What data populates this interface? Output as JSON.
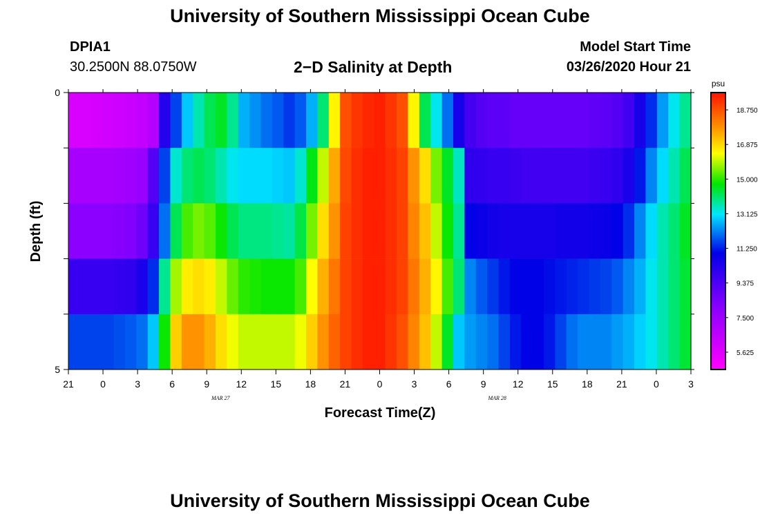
{
  "header": {
    "title": "University of Southern Mississippi Ocean Cube",
    "station_id": "DPIA1",
    "station_coords": "30.2500N 88.0750W",
    "plot_title": "2−D Salinity at Depth",
    "model_label": "Model Start Time",
    "model_time": "03/26/2020 Hour 21"
  },
  "footer": {
    "title": "University of Southern Mississippi Ocean Cube"
  },
  "chart_data": {
    "type": "heatmap",
    "title": "2−D Salinity at Depth",
    "xlabel": "Forecast Time(Z)",
    "ylabel": "Depth (ft)",
    "x_tick_labels": [
      "21",
      "0",
      "3",
      "6",
      "9",
      "12",
      "15",
      "18",
      "21",
      "0",
      "3",
      "6",
      "9",
      "12",
      "15",
      "18",
      "21",
      "0",
      "3"
    ],
    "date_labels": [
      {
        "text": "MAR 27",
        "after_tick": 4
      },
      {
        "text": "MAR 28",
        "after_tick": 12
      }
    ],
    "y_tick_labels": [
      "0",
      "5"
    ],
    "ylim": [
      0,
      5
    ],
    "x_hours": [
      0,
      1,
      2,
      3,
      4,
      5,
      6,
      7,
      8,
      9,
      10,
      11,
      12,
      13,
      14,
      15,
      16,
      17,
      18,
      19,
      20,
      21,
      22,
      23,
      24,
      25,
      26,
      27,
      28,
      29,
      30,
      31,
      32,
      33,
      34,
      35,
      36,
      37,
      38,
      39,
      40,
      41,
      42,
      43,
      44,
      45,
      46,
      47,
      48,
      49,
      50,
      51,
      52,
      53,
      54
    ],
    "depth_bands": [
      "0-1",
      "1-2",
      "2-3",
      "3-4",
      "4-5"
    ],
    "colorbar": {
      "unit": "psu",
      "min": 4.6875,
      "max": 19.6875,
      "tick_labels": [
        "18.750",
        "16.875",
        "15.000",
        "13.125",
        "11.250",
        "9.375",
        "7.500",
        "5.625"
      ],
      "tick_values": [
        18.75,
        16.875,
        15.0,
        13.125,
        11.25,
        9.375,
        7.5,
        5.625
      ]
    },
    "values": [
      [
        5.8,
        5.8,
        5.9,
        6.0,
        6.1,
        6.2,
        6.4,
        6.8,
        10.2,
        11.6,
        12.8,
        13.6,
        14.2,
        14.5,
        13.8,
        12.6,
        12.3,
        12.0,
        11.8,
        11.5,
        11.8,
        12.6,
        14.0,
        16.5,
        18.8,
        19.2,
        19.4,
        19.5,
        19.2,
        18.8,
        16.5,
        14.2,
        13.2,
        12.0,
        10.5,
        9.5,
        9.2,
        9.0,
        9.0,
        8.8,
        8.8,
        8.8,
        8.8,
        8.8,
        8.8,
        8.8,
        8.9,
        9.0,
        9.2,
        9.6,
        10.5,
        11.4,
        12.4,
        13.2,
        13.8
      ],
      [
        7.2,
        7.2,
        7.2,
        7.2,
        7.3,
        7.4,
        7.6,
        9.2,
        11.6,
        13.4,
        14.0,
        14.2,
        14.0,
        13.6,
        13.2,
        13.0,
        13.0,
        13.0,
        12.9,
        12.8,
        13.4,
        14.6,
        16.0,
        17.5,
        18.9,
        19.3,
        19.5,
        19.5,
        19.3,
        19.0,
        17.8,
        16.8,
        15.5,
        14.5,
        13.5,
        10.0,
        9.9,
        9.8,
        9.8,
        9.7,
        9.6,
        9.6,
        9.6,
        9.6,
        9.6,
        9.6,
        9.7,
        9.8,
        10.0,
        10.4,
        11.2,
        12.2,
        13.0,
        13.6,
        14.2
      ],
      [
        8.0,
        8.0,
        8.0,
        8.0,
        8.1,
        8.2,
        8.6,
        9.8,
        12.0,
        14.2,
        15.2,
        15.5,
        15.3,
        14.8,
        14.2,
        13.9,
        13.9,
        13.9,
        13.8,
        13.7,
        14.3,
        15.5,
        16.8,
        17.8,
        19.0,
        19.3,
        19.5,
        19.5,
        19.3,
        19.0,
        18.0,
        17.2,
        16.0,
        14.8,
        13.8,
        11.0,
        10.8,
        10.6,
        10.5,
        10.5,
        10.5,
        10.5,
        10.5,
        10.6,
        10.6,
        10.6,
        10.7,
        10.8,
        11.0,
        11.4,
        12.2,
        13.0,
        13.6,
        14.0,
        14.5
      ],
      [
        9.8,
        9.8,
        9.8,
        9.8,
        9.9,
        10.0,
        10.4,
        11.4,
        13.8,
        15.8,
        16.6,
        16.8,
        16.6,
        16.0,
        15.4,
        15.0,
        14.9,
        14.8,
        14.8,
        14.8,
        15.2,
        16.4,
        17.4,
        18.2,
        19.0,
        19.3,
        19.5,
        19.5,
        19.3,
        19.0,
        18.2,
        17.4,
        16.5,
        15.2,
        14.0,
        12.2,
        11.8,
        11.5,
        11.2,
        11.0,
        11.0,
        11.0,
        11.1,
        11.2,
        11.3,
        11.4,
        11.5,
        11.6,
        11.8,
        12.2,
        12.6,
        13.2,
        13.6,
        14.0,
        14.4
      ],
      [
        11.6,
        11.6,
        11.6,
        11.6,
        11.7,
        11.8,
        12.0,
        12.8,
        14.8,
        17.0,
        17.8,
        17.8,
        17.4,
        16.8,
        16.3,
        16.0,
        16.0,
        16.0,
        16.0,
        16.0,
        16.3,
        17.0,
        17.8,
        18.5,
        19.0,
        19.3,
        19.5,
        19.5,
        19.2,
        18.8,
        18.0,
        17.2,
        16.0,
        14.5,
        12.8,
        12.4,
        12.2,
        12.0,
        11.6,
        11.2,
        11.0,
        11.0,
        11.2,
        11.6,
        12.0,
        12.2,
        12.2,
        12.2,
        12.4,
        12.6,
        12.9,
        13.2,
        13.6,
        14.0,
        14.4
      ]
    ]
  }
}
